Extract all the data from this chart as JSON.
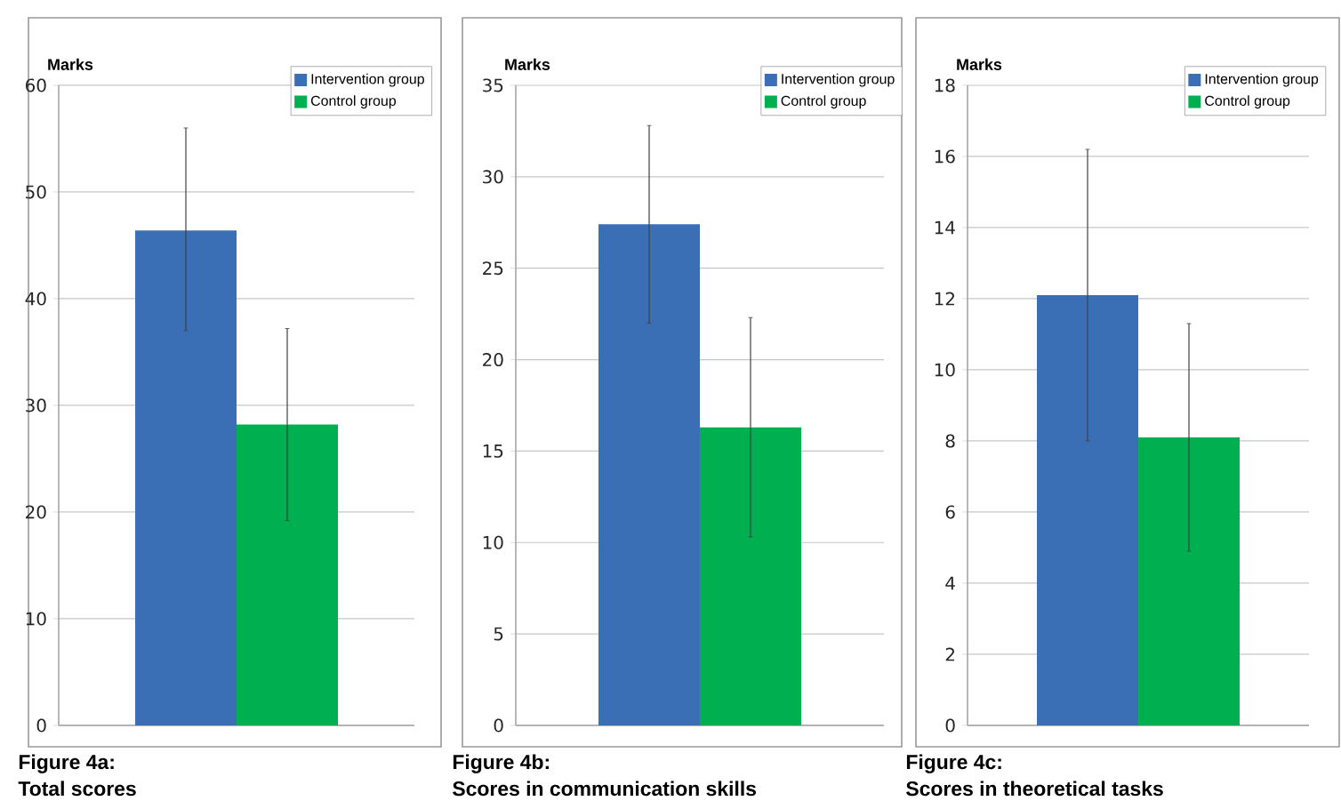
{
  "chart_data": [
    {
      "type": "bar",
      "title": "Figure 4a:",
      "subtitle": "Total scores",
      "ylabel": "Marks",
      "categories": [
        null
      ],
      "ylim": [
        0,
        60
      ],
      "yticks": [
        0,
        10,
        20,
        30,
        40,
        50,
        60
      ],
      "grid": "y",
      "legend": "top right",
      "series": [
        {
          "name": "Intervention group",
          "color": "#3a6eb5",
          "values": [
            46.4
          ],
          "errors": [
            [
              37,
              56
            ]
          ]
        },
        {
          "name": "Control group",
          "color": "#00b050",
          "values": [
            28.2
          ],
          "errors": [
            [
              19.2,
              37.2
            ]
          ]
        }
      ]
    },
    {
      "type": "bar",
      "title": "Figure 4b:",
      "subtitle": "Scores in communication skills",
      "ylabel": "Marks",
      "categories": [
        null
      ],
      "ylim": [
        0,
        35
      ],
      "yticks": [
        0,
        5,
        10,
        15,
        20,
        25,
        30,
        35
      ],
      "grid": "y",
      "legend": "top right",
      "series": [
        {
          "name": "Intervention group",
          "color": "#3a6eb5",
          "values": [
            27.4
          ],
          "errors": [
            [
              22,
              32.8
            ]
          ]
        },
        {
          "name": "Control group",
          "color": "#00b050",
          "values": [
            16.3
          ],
          "errors": [
            [
              10.3,
              22.3
            ]
          ]
        }
      ]
    },
    {
      "type": "bar",
      "title": "Figure 4c:",
      "subtitle": "Scores in theoretical tasks",
      "ylabel": "Marks",
      "categories": [
        null
      ],
      "ylim": [
        0,
        18
      ],
      "yticks": [
        0,
        2,
        4,
        6,
        8,
        10,
        12,
        14,
        16,
        18
      ],
      "grid": "y",
      "legend": "top right",
      "series": [
        {
          "name": "Intervention group",
          "color": "#3a6eb5",
          "values": [
            12.1
          ],
          "errors": [
            [
              8,
              16.2
            ]
          ]
        },
        {
          "name": "Control group",
          "color": "#00b050",
          "values": [
            8.1
          ],
          "errors": [
            [
              4.9,
              11.3
            ]
          ]
        }
      ]
    }
  ]
}
